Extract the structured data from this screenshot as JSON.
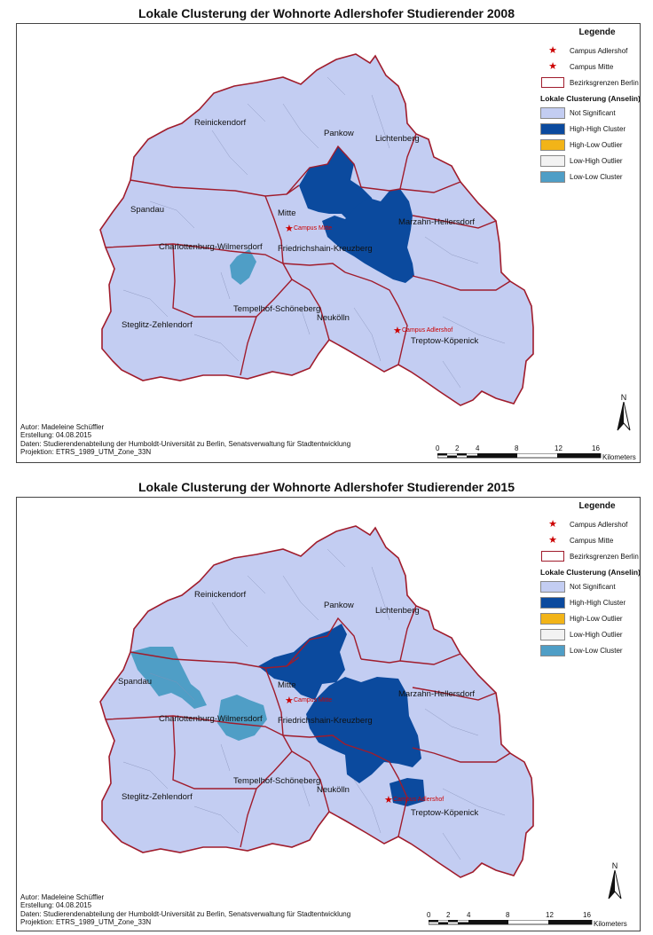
{
  "maps": [
    {
      "title": "Lokale Clusterung der Wohnorte Adlershofer Studierender 2008",
      "meta": {
        "author": "Autor: Madeleine Schüffler",
        "created": "Erstellung: 04.08.2015",
        "data": "Daten: Studierendenabteilung der Humboldt-Universität zu Berlin, Senatsverwaltung für Stadtentwicklung",
        "projection": "Projektion: ETRS_1989_UTM_Zone_33N"
      }
    },
    {
      "title": "Lokale Clusterung der Wohnorte Adlershofer Studierender 2015",
      "meta": {
        "author": "Autor: Madeleine Schüffler",
        "created": "Erstellung: 04.08.2015",
        "data": "Daten: Studierendenabteilung der Humboldt-Universität zu Berlin, Senatsverwaltung für Stadtentwicklung",
        "projection": "Projektion: ETRS_1989_UTM_Zone_33N"
      }
    }
  ],
  "legend": {
    "title": "Legende",
    "campus_adlershof": "Campus Adlershof",
    "campus_mitte": "Campus Mitte",
    "boundaries": "Bezirksgrenzen Berlin",
    "section": "Lokale Clusterung (Anselin)",
    "classes": [
      {
        "label": "Not Significant",
        "color": "#c3cdf2"
      },
      {
        "label": "High-High Cluster",
        "color": "#0b4a9e"
      },
      {
        "label": "High-Low Outlier",
        "color": "#f2b418"
      },
      {
        "label": "Low-High Outlier",
        "color": "#f2f2f2"
      },
      {
        "label": "Low-Low Cluster",
        "color": "#4f9ec6"
      }
    ]
  },
  "districts": [
    "Reinickendorf",
    "Pankow",
    "Lichtenberg",
    "Spandau",
    "Mitte",
    "Marzahn-Hellersdorf",
    "Charlottenburg-Wilmersdorf",
    "Friedrichshain-Kreuzberg",
    "Tempelhof-Schöneberg",
    "Steglitz-Zehlendorf",
    "Neukölln",
    "Treptow-Köpenick"
  ],
  "campus_labels": {
    "mitte": "Campus Mitte",
    "adlershof": "Campus Adlershof"
  },
  "scale": {
    "ticks": [
      "0",
      "2",
      "4",
      "8",
      "12",
      "16"
    ],
    "unit": "Kilometers"
  },
  "north": "N",
  "colors": {
    "boundary": "#a01c2c",
    "base": "#c3cdf2",
    "high_high": "#0b4a9e",
    "low_low": "#4f9ec6",
    "campus": "#cc0000"
  }
}
